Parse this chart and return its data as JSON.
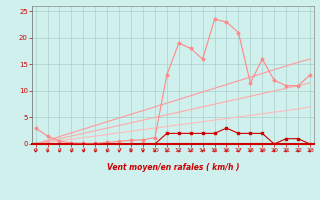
{
  "xlabel": "Vent moyen/en rafales ( km/h )",
  "x_values": [
    0,
    1,
    2,
    3,
    4,
    5,
    6,
    7,
    8,
    9,
    10,
    11,
    12,
    13,
    14,
    15,
    16,
    17,
    18,
    19,
    20,
    21,
    22,
    23
  ],
  "line_gust_y": [
    3,
    1.5,
    0.5,
    0.2,
    0.1,
    0.1,
    0.3,
    0.5,
    0.7,
    0.8,
    1.2,
    13,
    19,
    18,
    16,
    23.5,
    23,
    21,
    11.5,
    16,
    12,
    11,
    11,
    13
  ],
  "line_wind_y": [
    0,
    0,
    0,
    0,
    0,
    0,
    0,
    0,
    0,
    0,
    0,
    2,
    2,
    2,
    2,
    2,
    3,
    2,
    2,
    2,
    0,
    1,
    1,
    0
  ],
  "line_diag1_y": [
    0,
    0.3,
    0.6,
    0.9,
    1.2,
    1.5,
    1.8,
    2.1,
    2.4,
    2.7,
    3.0,
    3.3,
    3.6,
    3.9,
    4.2,
    4.5,
    4.8,
    5.1,
    5.4,
    5.7,
    6.0,
    6.3,
    6.6,
    7.0
  ],
  "line_diag2_y": [
    0,
    0.5,
    1.0,
    1.5,
    2.0,
    2.5,
    3.0,
    3.5,
    4.0,
    4.5,
    5.0,
    5.5,
    6.0,
    6.5,
    7.0,
    7.5,
    8.0,
    8.5,
    9.0,
    9.5,
    10.0,
    10.5,
    11.0,
    11.5
  ],
  "line_diag3_y": [
    0,
    0.7,
    1.4,
    2.1,
    2.8,
    3.5,
    4.2,
    4.9,
    5.6,
    6.3,
    7.0,
    7.7,
    8.4,
    9.1,
    9.8,
    10.5,
    11.2,
    11.9,
    12.6,
    13.3,
    14.0,
    14.7,
    15.4,
    16.0
  ],
  "bg_color": "#cff0ec",
  "grid_color": "#aacfcb",
  "color_gust": "#ff8888",
  "color_wind": "#cc0000",
  "color_diag1": "#ffbbbb",
  "color_diag2": "#ffaaaa",
  "color_diag3": "#ff9999",
  "color_arrows": "#cc0000",
  "color_xlabel": "#cc0000",
  "color_ticks": "#cc0000",
  "ylim": [
    0,
    26
  ],
  "yticks": [
    0,
    5,
    10,
    15,
    20,
    25
  ]
}
